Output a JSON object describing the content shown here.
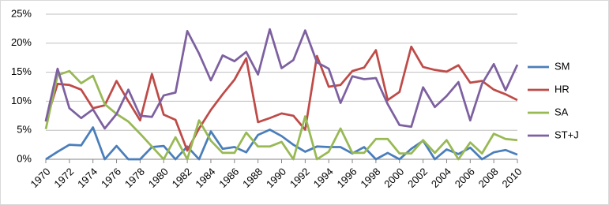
{
  "chart_data": {
    "type": "line",
    "x": [
      1970,
      1971,
      1972,
      1973,
      1974,
      1975,
      1976,
      1977,
      1978,
      1979,
      1980,
      1981,
      1982,
      1983,
      1984,
      1985,
      1986,
      1987,
      1988,
      1989,
      1990,
      1991,
      1992,
      1993,
      1994,
      1995,
      1996,
      1997,
      1998,
      1999,
      2000,
      2001,
      2002,
      2003,
      2004,
      2005,
      2006,
      2007,
      2008,
      2009,
      2010
    ],
    "xlim": [
      1970,
      2010
    ],
    "xticks": [
      1970,
      1972,
      1974,
      1976,
      1978,
      1980,
      1982,
      1984,
      1986,
      1988,
      1990,
      1992,
      1994,
      1996,
      1998,
      2000,
      2002,
      2004,
      2006,
      2008,
      2010
    ],
    "ylim": [
      0,
      25
    ],
    "yticks": [
      {
        "value": 0,
        "label": "0%"
      },
      {
        "value": 5,
        "label": "5%"
      },
      {
        "value": 10,
        "label": "10%"
      },
      {
        "value": 15,
        "label": "15%"
      },
      {
        "value": 20,
        "label": "20%"
      },
      {
        "value": 25,
        "label": "25%"
      }
    ],
    "grid": true,
    "legend": "right",
    "series": [
      {
        "name": "SM",
        "color": "#4a7ebb",
        "values": [
          0,
          1.3,
          2.5,
          2.4,
          5.5,
          0,
          2.3,
          0,
          0,
          2.1,
          2.3,
          0,
          2.2,
          0,
          4.8,
          1.8,
          2.1,
          1.2,
          4.2,
          5.1,
          4,
          2.5,
          1.3,
          2.2,
          2.1,
          2.1,
          1,
          2.1,
          0,
          1.1,
          0,
          1.8,
          3.2,
          0,
          1.7,
          0.9,
          2,
          0,
          1.2,
          1.6,
          0.8
        ]
      },
      {
        "name": "HR",
        "color": "#be4b48",
        "values": [
          6.5,
          13,
          12.8,
          12,
          8.8,
          9.3,
          13.5,
          10,
          6.7,
          14.7,
          7.7,
          6.8,
          1.5,
          5.3,
          8.5,
          11.2,
          13.7,
          17.4,
          6.4,
          7.1,
          7.9,
          7.5,
          5.1,
          17.8,
          12.5,
          12.8,
          15.2,
          15.8,
          18.8,
          10.2,
          11.6,
          19.4,
          15.9,
          15.4,
          15.1,
          16.2,
          13.2,
          13.5,
          12,
          11.2,
          10.2
        ]
      },
      {
        "name": "SA",
        "color": "#98b954",
        "values": [
          5.2,
          14.5,
          15.2,
          13.1,
          14.4,
          9.5,
          7.8,
          6.5,
          4.4,
          2.2,
          0,
          3.8,
          0,
          6.7,
          3.2,
          1.1,
          1.1,
          4.6,
          2.2,
          2.2,
          3,
          0,
          7.4,
          0,
          1.3,
          5.3,
          1.1,
          1.1,
          3.5,
          3.5,
          1,
          1,
          3.3,
          1.1,
          3.3,
          0,
          2.9,
          1,
          4.4,
          3.5,
          3.3
        ]
      },
      {
        "name": "ST+J",
        "color": "#7d60a0",
        "values": [
          6.6,
          15.6,
          8.8,
          7.1,
          8.6,
          5.3,
          7.8,
          12,
          7.5,
          7.3,
          11,
          11.5,
          22.1,
          18.2,
          13.6,
          17.9,
          16.9,
          18.5,
          14.6,
          22.4,
          15.7,
          17.1,
          22.2,
          16.7,
          15.6,
          9.7,
          14.3,
          13.8,
          14,
          9.5,
          5.9,
          5.6,
          12.4,
          9,
          10.9,
          13.3,
          6.7,
          13,
          16.4,
          11.9,
          16.3
        ]
      }
    ]
  }
}
